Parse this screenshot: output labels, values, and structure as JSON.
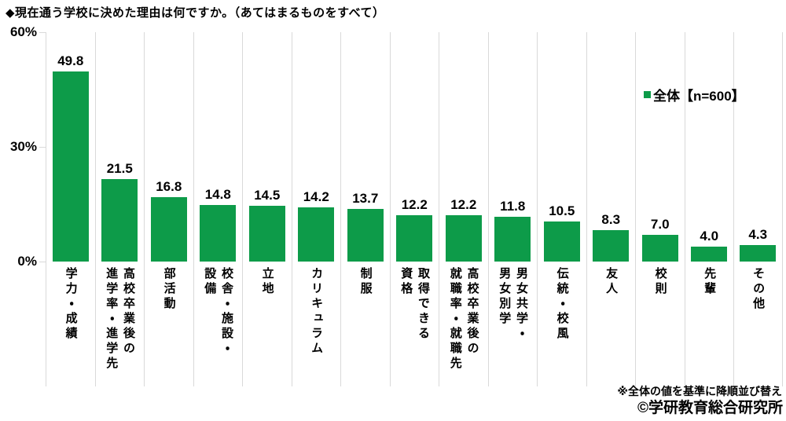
{
  "title": "◆現在通う学校に決めた理由は何ですか。（あてはまるものをすべて）",
  "legend": {
    "label": "全体【n=600】"
  },
  "footnotes": {
    "sort_note": "※全体の値を基準に降順並び替え",
    "copyright": "©学研教育総合研究所"
  },
  "colors": {
    "bar": "#0d9b49",
    "grid": "#d9d9d9",
    "text": "#000000"
  },
  "chart_data": {
    "type": "bar",
    "title": "現在通う学校に決めた理由は何ですか。（あてはまるものをすべて）",
    "series_name": "全体【n=600】",
    "categories": [
      "学力・成績",
      "高校卒業後の\n進学率・進学先",
      "部活動",
      "校舎・施設・\n設備",
      "立地",
      "カリキュラム",
      "制服",
      "取得できる\n資格",
      "高校卒業後の\n就職率・就職先",
      "男女共学・\n男女別学",
      "伝統・校風",
      "友人",
      "校則",
      "先輩",
      "その他"
    ],
    "values": [
      49.8,
      21.5,
      16.8,
      14.8,
      14.5,
      14.2,
      13.7,
      12.2,
      12.2,
      11.8,
      10.5,
      8.3,
      7.0,
      4.0,
      4.3
    ],
    "unit": "%",
    "ylim": [
      0,
      60
    ],
    "yaxis": {
      "tick_labels": [
        "60%",
        "30%",
        "0%"
      ],
      "tick_values": [
        60,
        30,
        0
      ]
    },
    "grid": "vertical-only",
    "legend_position": "right-upper",
    "value_labels_shown": true,
    "category_orientation": "vertical-text"
  }
}
